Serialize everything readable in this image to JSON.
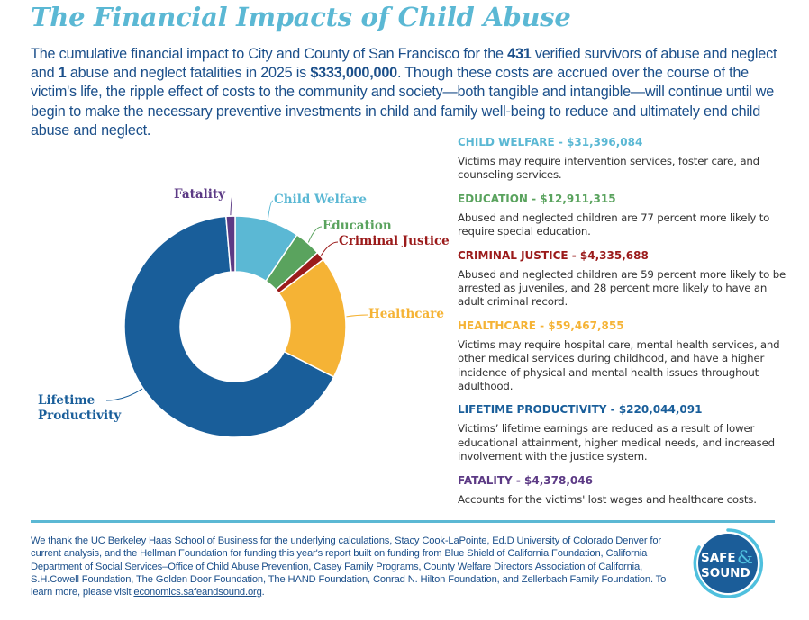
{
  "header": {
    "title": "The Financial Impacts of Child Abuse"
  },
  "intro": {
    "part1": "The cumulative financial impact to City and County of San Francisco for the ",
    "survivors": "431",
    "part2": " verified survivors of abuse and neglect and ",
    "fatalities": "1",
    "part3": " abuse and neglect fatalities in 2025 is ",
    "total": "$333,000,000",
    "part4": ". Though these costs are accrued over the course of the victim's life, the ripple effect of costs to the community and society—both tangible and intangible—will continue until we begin to make the necessary preventive investments in child and family well-being to reduce and ultimately end child abuse and neglect."
  },
  "chart_data": {
    "type": "pie",
    "variant": "donut",
    "title": "",
    "start": "top",
    "direction": "clockwise",
    "slices": [
      {
        "name": "Child Welfare",
        "value": 31396084,
        "color": "#5bb8d4"
      },
      {
        "name": "Education",
        "value": 12911315,
        "color": "#5aa35e"
      },
      {
        "name": "Criminal Justice",
        "value": 4335688,
        "color": "#9b1b1b"
      },
      {
        "name": "Healthcare",
        "value": 59467855,
        "color": "#f5b335"
      },
      {
        "name": "Lifetime Productivity",
        "value": 220044091,
        "color": "#195e9a"
      },
      {
        "name": "Fatality",
        "value": 4378046,
        "color": "#5c3a85"
      }
    ],
    "labels": {
      "fatality": "Fatality",
      "child_welfare": "Child Welfare",
      "education": "Education",
      "criminal_justice": "Criminal Justice",
      "healthcare": "Healthcare",
      "lifetime_line1": "Lifetime",
      "lifetime_line2": "Productivity"
    }
  },
  "categories": [
    {
      "heading": "CHILD WELFARE - $31,396,084",
      "color": "#5bb8d4",
      "description": "Victims may require intervention services, foster care, and counseling services."
    },
    {
      "heading": "EDUCATION - $12,911,315",
      "color": "#5aa35e",
      "description": "Abused and neglected children are 77 percent more likely to require special education."
    },
    {
      "heading": "CRIMINAL JUSTICE - $4,335,688",
      "color": "#9b1b1b",
      "description": "Abused and neglected children are 59 percent more likely to be arrested as juveniles, and 28 percent more likely to have an adult criminal record."
    },
    {
      "heading": "HEALTHCARE - $59,467,855",
      "color": "#f5b335",
      "description": "Victims may require hospital care, mental health services, and other medical services during childhood, and have a higher incidence of physical and mental health issues throughout adulthood."
    },
    {
      "heading": "LIFETIME PRODUCTIVITY - $220,044,091",
      "color": "#195e9a",
      "description": "Victims’ lifetime earnings are reduced as a result of lower educational attainment, higher medical needs, and increased involvement with the justice system."
    },
    {
      "heading": "FATALITY - $4,378,046",
      "color": "#5c3a85",
      "description": "Accounts for the victims' lost wages and healthcare costs."
    }
  ],
  "footer": {
    "text": "We thank the UC Berkeley Haas School of Business for the underlying calculations, Stacy Cook-LaPointe, Ed.D University of Colorado Denver for current analysis, and the Hellman Foundation for funding this year's report built on funding from Blue Shield of California Foundation, California Department of Social Services–Office of Child Abuse Prevention, Casey Family Programs, County Welfare Directors Association of California, S.H.Cowell Foundation, The Golden Door Foundation, The HAND Foundation, Conrad N. Hilton Foundation, and Zellerbach Family Foundation. To learn more, please visit ",
    "link": "economics.safeandsound.org",
    "end": "."
  },
  "logo": {
    "line1": "SAFE",
    "amp": "&",
    "line2": "SOUND",
    "bg_color": "#1b5d99",
    "ring_color": "#4fc0de"
  }
}
